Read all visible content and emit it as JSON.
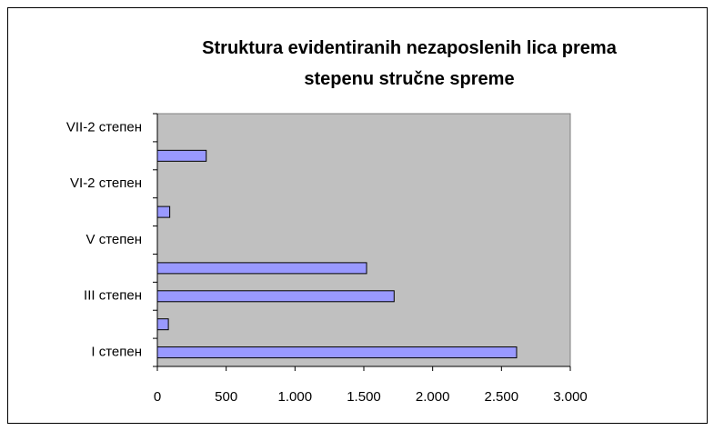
{
  "chart_data": {
    "type": "hbar",
    "title": "Struktura evidentiranih nezaposlenih lica prema\nstepenu stručne spreme",
    "categories": [
      "I степен",
      null,
      "III степен",
      null,
      "V степен",
      null,
      "VI-2 степен",
      null,
      "VII-2 степен"
    ],
    "values": [
      2610,
      80,
      1720,
      1520,
      null,
      90,
      null,
      355,
      null
    ],
    "color": "#9999ff",
    "plot_background": "#c0c0c0",
    "xlim": [
      0,
      3000
    ],
    "xticks": [
      0,
      500,
      {
        "value": 1000,
        "label": "1.000"
      },
      {
        "value": 1500,
        "label": "1.500"
      },
      {
        "value": 2000,
        "label": "2.000"
      },
      {
        "value": 2500,
        "label": "2.500"
      },
      {
        "value": 3000,
        "label": "3.000"
      }
    ]
  }
}
